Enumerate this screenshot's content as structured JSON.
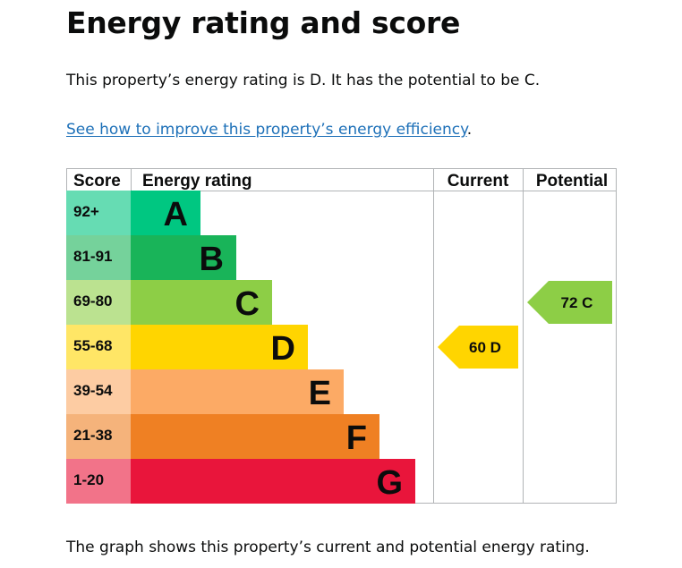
{
  "page": {
    "title": "Energy rating and score",
    "intro": "This property’s energy rating is D. It has the potential to be C.",
    "link_text": "See how to improve this property’s energy efficiency",
    "link_suffix": ".",
    "caption": "The graph shows this property’s current and potential energy rating."
  },
  "chart_data": {
    "type": "table",
    "headers": {
      "score": "Score",
      "rating": "Energy rating",
      "current": "Current",
      "potential": "Potential"
    },
    "bands": [
      {
        "letter": "A",
        "range": "92+",
        "color": "#00c781",
        "score_bg": "#66dcb3",
        "letter_color": "#0b0c0c"
      },
      {
        "letter": "B",
        "range": "81-91",
        "color": "#19b459",
        "score_bg": "#75d29b",
        "letter_color": "#0b0c0c"
      },
      {
        "letter": "C",
        "range": "69-80",
        "color": "#8dce46",
        "score_bg": "#bbe290",
        "letter_color": "#0b0c0c"
      },
      {
        "letter": "D",
        "range": "55-68",
        "color": "#ffd500",
        "score_bg": "#ffe666",
        "letter_color": "#0b0c0c"
      },
      {
        "letter": "E",
        "range": "39-54",
        "color": "#fcaa65",
        "score_bg": "#fdcca3",
        "letter_color": "#0b0c0c"
      },
      {
        "letter": "F",
        "range": "21-38",
        "color": "#ef8023",
        "score_bg": "#f5b37b",
        "letter_color": "#0b0c0c"
      },
      {
        "letter": "G",
        "range": "1-20",
        "color": "#e9153b",
        "score_bg": "#f27389",
        "letter_color": "#0b0c0c"
      }
    ],
    "current": {
      "score": 60,
      "letter": "D",
      "label": "60  D"
    },
    "potential": {
      "score": 72,
      "letter": "C",
      "label": "72  C"
    }
  }
}
